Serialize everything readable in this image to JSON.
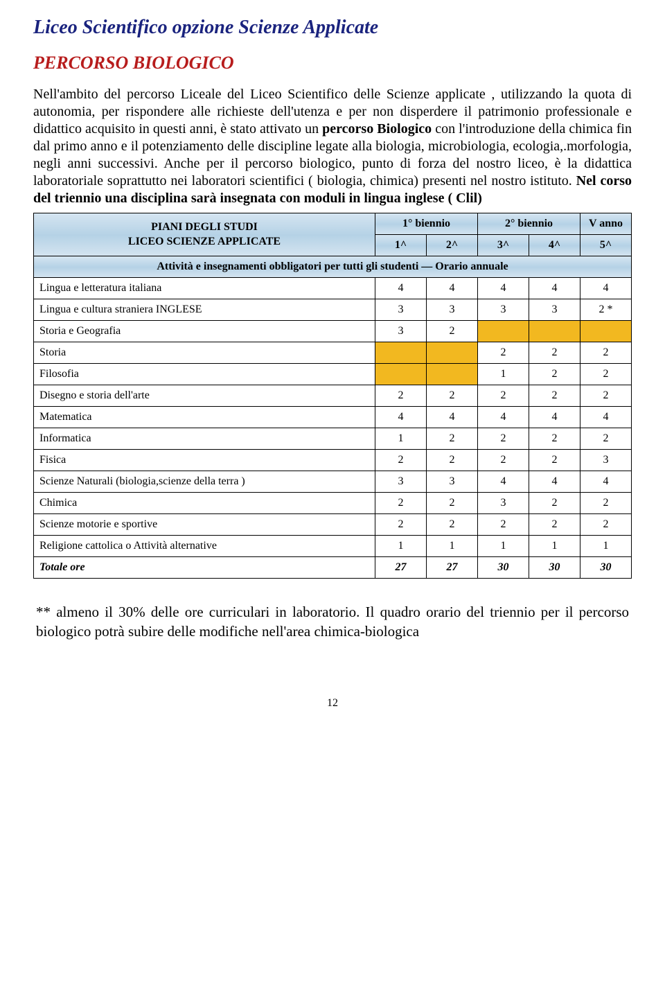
{
  "title": "Liceo Scientifico  opzione Scienze Applicate",
  "subtitle": "PERCORSO BIOLOGICO",
  "paragraph_parts": {
    "p1": "Nell'ambito del percorso Liceale del Liceo Scientifico delle Scienze applicate , utilizzando la quota di autonomia, per  rispondere alle  richieste dell'utenza e per non disperdere il patrimonio professionale e didattico acquisito in questi anni, è stato attivato  un ",
    "p2_bold": "percorso Biologico",
    "p3": "  con l'introduzione della chimica fin dal  primo anno e il potenziamento delle discipline legate alla biologia, microbiologia, ecologia,.morfologia, negli anni successivi. Anche per il percorso biologico,  punto di forza del nostro liceo,  è la didattica laboratoriale soprattutto nei laboratori scientifici ( biologia, chimica) presenti nel nostro istituto. ",
    "p4_bold": "Nel corso del triennio una disciplina sarà insegnata  con moduli in lingua inglese ( Clil)"
  },
  "table": {
    "plan_label_line1": "PIANI DEGLI STUDI",
    "plan_label_line2": "LICEO SCIENZE APPLICATE",
    "biennio1": "1° biennio",
    "biennio2": "2° biennio",
    "vanno": "V anno",
    "y1": "1^",
    "y2": "2^",
    "y3": "3^",
    "y4": "4^",
    "y5": "5^",
    "activities_caption": "Attività e insegnamenti obbligatori per tutti gli studenti — Orario annuale",
    "rows": [
      {
        "label": "Lingua e letteratura italiana",
        "v": [
          "4",
          "4",
          "4",
          "4",
          "4"
        ],
        "shade": []
      },
      {
        "label": "Lingua e cultura straniera INGLESE",
        "v": [
          "3",
          "3",
          "3",
          "3",
          "2 *"
        ],
        "shade": []
      },
      {
        "label": "Storia e Geografia",
        "v": [
          "3",
          "2",
          "",
          "",
          ""
        ],
        "shade": [
          2,
          3,
          4
        ]
      },
      {
        "label": "Storia",
        "v": [
          "",
          "",
          "2",
          "2",
          "2"
        ],
        "shade": [
          0,
          1
        ]
      },
      {
        "label": "Filosofia",
        "v": [
          "",
          "",
          "1",
          "2",
          "2"
        ],
        "shade": [
          0,
          1
        ]
      },
      {
        "label": "Disegno e storia dell'arte",
        "v": [
          "2",
          "2",
          "2",
          "2",
          "2"
        ],
        "shade": []
      },
      {
        "label": "Matematica",
        "v": [
          "4",
          "4",
          "4",
          "4",
          "4"
        ],
        "shade": []
      },
      {
        "label": "Informatica",
        "v": [
          "1",
          "2",
          "2",
          "2",
          "2"
        ],
        "shade": []
      },
      {
        "label": "Fisica",
        "v": [
          "2",
          "2",
          "2",
          "2",
          "3"
        ],
        "shade": []
      },
      {
        "label": "Scienze Naturali (biologia,scienze della terra )",
        "v": [
          "3",
          "3",
          "4",
          "4",
          "4"
        ],
        "shade": []
      },
      {
        "label": "Chimica",
        "v": [
          "2",
          "2",
          "3",
          "2",
          "2"
        ],
        "shade": []
      },
      {
        "label": "Scienze motorie e sportive",
        "v": [
          "2",
          "2",
          "2",
          "2",
          "2"
        ],
        "shade": []
      },
      {
        "label": "Religione cattolica o Attività alternative",
        "v": [
          "1",
          "1",
          "1",
          "1",
          "1"
        ],
        "shade": []
      }
    ],
    "total_label": "Totale ore",
    "total_values": [
      "27",
      "27",
      "30",
      "30",
      "30"
    ]
  },
  "footnote": "** almeno il 30% delle ore curriculari in laboratorio. Il quadro orario del triennio per il percorso biologico potrà  subire delle modifiche nell'area chimica-biologica",
  "page_number": "12",
  "colors": {
    "title": "#1a237e",
    "subtitle": "#b71c1c",
    "header_grad_light": "#d4e4f0",
    "header_grad_dark": "#b5d2e6",
    "shaded_cell": "#f2b820",
    "border": "#000000",
    "background": "#ffffff"
  }
}
